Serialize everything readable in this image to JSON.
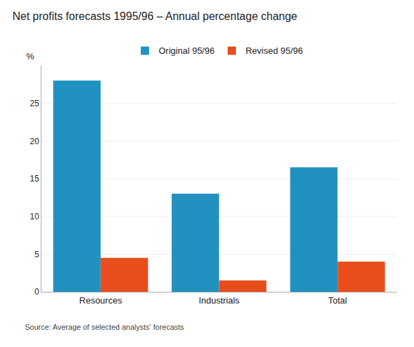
{
  "chart_data": {
    "type": "bar",
    "title": "Net profits forecasts 1995/96 – Annual percentage change",
    "ylabel": "%",
    "categories": [
      "Resources",
      "Industrials",
      "Total"
    ],
    "series": [
      {
        "name": "Original 95/96",
        "color": "#2191c0",
        "values": [
          28.0,
          13.0,
          16.5
        ]
      },
      {
        "name": "Revised 95/96",
        "color": "#e84e1b",
        "values": [
          4.5,
          1.5,
          4.0
        ]
      }
    ],
    "ylim": [
      0,
      30
    ],
    "yticks": [
      0,
      5,
      10,
      15,
      20,
      25
    ],
    "grid": true,
    "legend": "top",
    "source": "Source: Average of selected analysts' forecasts"
  }
}
